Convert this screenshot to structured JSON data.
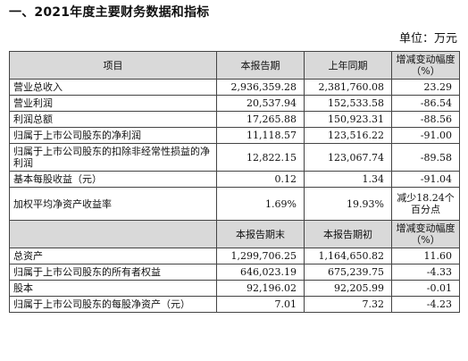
{
  "heading": "一、2021年度主要财务数据和指标",
  "unit": "单位：万元",
  "table1": {
    "headers": [
      "项目",
      "本报告期",
      "上年同期",
      "增减变动幅度（%）"
    ],
    "rows": [
      {
        "item": "营业总收入",
        "current": "2,936,359.28",
        "prior": "2,381,760.08",
        "change": "23.29"
      },
      {
        "item": "营业利润",
        "current": "20,537.94",
        "prior": "152,533.58",
        "change": "-86.54"
      },
      {
        "item": "利润总额",
        "current": "17,265.88",
        "prior": "150,923.31",
        "change": "-88.56"
      },
      {
        "item": "归属于上市公司股东的净利润",
        "current": "11,118.57",
        "prior": "123,516.22",
        "change": "-91.00"
      },
      {
        "item": "归属于上市公司股东的扣除非经常性损益的净利润",
        "current": "12,822.15",
        "prior": "123,067.74",
        "change": "-89.58"
      },
      {
        "item": "基本每股收益（元）",
        "current": "0.12",
        "prior": "1.34",
        "change": "-91.04"
      },
      {
        "item": "加权平均净资产收益率",
        "current": "1.69%",
        "prior": "19.93%",
        "change": "减少18.24个百分点"
      }
    ]
  },
  "table2": {
    "headers": [
      "",
      "本报告期末",
      "本报告期初",
      "增减变动幅度（%）"
    ],
    "rows": [
      {
        "item": "总资产",
        "current": "1,299,706.25",
        "prior": "1,164,650.82",
        "change": "11.60"
      },
      {
        "item": "归属于上市公司股东的所有者权益",
        "current": "646,023.19",
        "prior": "675,239.75",
        "change": "-4.33"
      },
      {
        "item": "股本",
        "current": "92,196.02",
        "prior": "92,205.99",
        "change": "-0.01"
      },
      {
        "item": "归属于上市公司股东的每股净资产（元）",
        "current": "7.01",
        "prior": "7.32",
        "change": "-4.23"
      }
    ]
  }
}
